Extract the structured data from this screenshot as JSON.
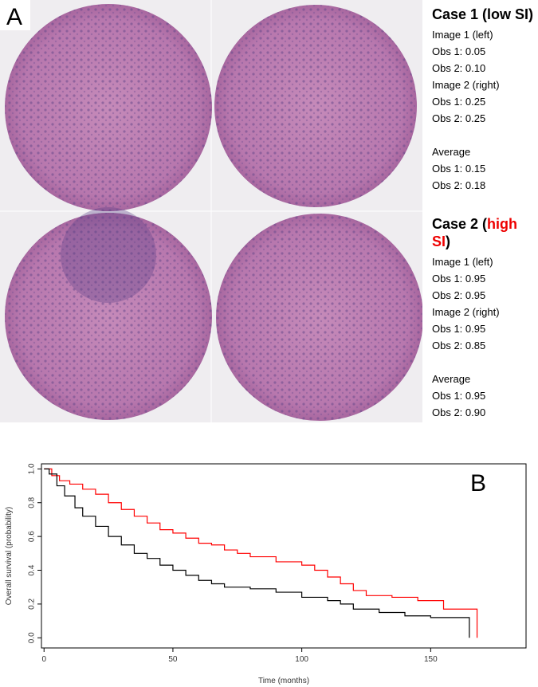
{
  "panel_a": {
    "label": "A",
    "cases": [
      {
        "title": "Case 1 (low SI)",
        "lines": [
          "Image 1 (left)",
          "Obs 1: 0.05",
          "Obs 2: 0.10",
          "Image 2 (right)",
          "Obs 1: 0.25",
          "Obs 2: 0.25"
        ],
        "average": [
          "Average",
          "Obs 1: 0.15",
          "Obs 2: 0.18"
        ]
      },
      {
        "title": "Case 2 (",
        "title_highlight": "high SI",
        "title_end": ")",
        "lines": [
          "Image 1 (left)",
          "Obs 1: 0.95",
          "Obs 2: 0.95",
          "Image 2 (right)",
          "Obs 1: 0.95",
          "Obs 2: 0.85"
        ],
        "average": [
          "Average",
          "Obs 1: 0.95",
          "Obs 2: 0.90"
        ]
      }
    ]
  },
  "chart_data": {
    "type": "line",
    "panel_label": "B",
    "x_label": "Time (months)",
    "y_label": "Overall survival (probability)",
    "xlim": [
      -1,
      187
    ],
    "xticks": [
      0,
      50,
      100,
      150
    ],
    "ylim": [
      -0.06,
      1.03
    ],
    "yticks": [
      {
        "value": 0,
        "label": "0.0"
      },
      0.2,
      0.4,
      0.6,
      0.8,
      {
        "value": 1,
        "label": "1.0"
      }
    ],
    "step": true,
    "series": [
      {
        "color": "#ff0000",
        "x": [
          0,
          3,
          6,
          10,
          15,
          20,
          25,
          30,
          35,
          40,
          45,
          50,
          55,
          60,
          65,
          70,
          75,
          80,
          90,
          100,
          105,
          110,
          115,
          120,
          125,
          135,
          145,
          155,
          168,
          168
        ],
        "values": [
          1,
          0.96,
          0.93,
          0.91,
          0.88,
          0.85,
          0.8,
          0.76,
          0.72,
          0.68,
          0.64,
          0.62,
          0.59,
          0.56,
          0.55,
          0.52,
          0.5,
          0.48,
          0.45,
          0.43,
          0.4,
          0.36,
          0.32,
          0.28,
          0.25,
          0.24,
          0.22,
          0.17,
          0.17,
          0
        ]
      },
      {
        "color": "#000000",
        "x": [
          0,
          2,
          5,
          8,
          12,
          15,
          20,
          25,
          30,
          35,
          40,
          45,
          50,
          55,
          60,
          65,
          70,
          80,
          90,
          100,
          110,
          115,
          120,
          130,
          140,
          150,
          165,
          165
        ],
        "values": [
          1,
          0.97,
          0.9,
          0.84,
          0.77,
          0.72,
          0.66,
          0.6,
          0.55,
          0.5,
          0.47,
          0.43,
          0.4,
          0.37,
          0.34,
          0.32,
          0.3,
          0.29,
          0.27,
          0.24,
          0.22,
          0.2,
          0.17,
          0.15,
          0.13,
          0.12,
          0.12,
          0
        ]
      }
    ]
  }
}
